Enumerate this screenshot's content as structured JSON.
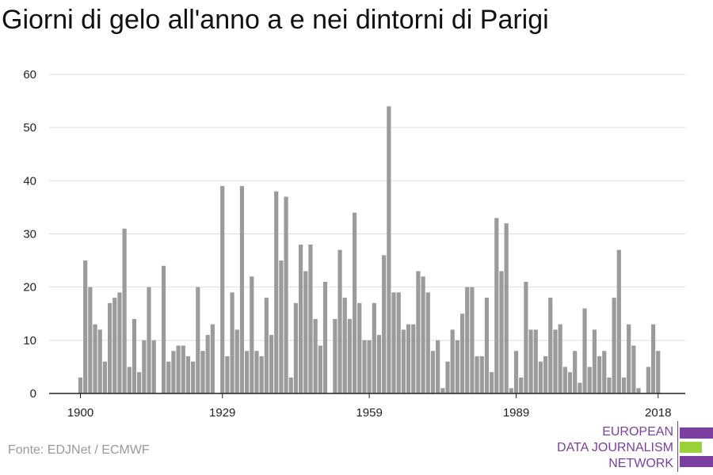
{
  "title": "Giorni di gelo all'anno a e nei dintorni di Parigi",
  "source": "Fonte: EDJNet / ECMWF",
  "logo": {
    "lines": [
      "EUROPEAN",
      "DATA JOURNALISM",
      "NETWORK"
    ],
    "colors": {
      "purple": "#7b3fa0",
      "green": "#9bd23a"
    }
  },
  "colors": {
    "bar": "#9b9b9b",
    "grid": "#dddddd",
    "axis": "#222222"
  },
  "chart_data": {
    "type": "bar",
    "title": "Giorni di gelo all'anno a e nei dintorni di Parigi",
    "xlabel": "",
    "ylabel": "",
    "ylim": [
      0,
      60
    ],
    "yticks": [
      0,
      10,
      20,
      30,
      40,
      50,
      60
    ],
    "xtick_labels": [
      "1900",
      "1929",
      "1959",
      "1989",
      "2018"
    ],
    "grid": true,
    "x": [
      1900,
      1901,
      1902,
      1903,
      1904,
      1905,
      1906,
      1907,
      1908,
      1909,
      1910,
      1911,
      1912,
      1913,
      1914,
      1915,
      1916,
      1917,
      1918,
      1919,
      1920,
      1921,
      1922,
      1923,
      1924,
      1925,
      1926,
      1927,
      1928,
      1929,
      1930,
      1931,
      1932,
      1933,
      1934,
      1935,
      1936,
      1937,
      1938,
      1939,
      1940,
      1941,
      1942,
      1943,
      1944,
      1945,
      1946,
      1947,
      1948,
      1949,
      1950,
      1951,
      1952,
      1953,
      1954,
      1955,
      1956,
      1957,
      1958,
      1959,
      1960,
      1961,
      1962,
      1963,
      1964,
      1965,
      1966,
      1967,
      1968,
      1969,
      1970,
      1971,
      1972,
      1973,
      1974,
      1975,
      1976,
      1977,
      1978,
      1979,
      1980,
      1981,
      1982,
      1983,
      1984,
      1985,
      1986,
      1987,
      1988,
      1989,
      1990,
      1991,
      1992,
      1993,
      1994,
      1995,
      1996,
      1997,
      1998,
      1999,
      2000,
      2001,
      2002,
      2003,
      2004,
      2005,
      2006,
      2007,
      2008,
      2009,
      2010,
      2011,
      2012,
      2013,
      2014,
      2015,
      2016,
      2017,
      2018
    ],
    "values": [
      3,
      25,
      20,
      13,
      12,
      6,
      17,
      18,
      19,
      31,
      5,
      14,
      4,
      10,
      20,
      10,
      0,
      24,
      6,
      8,
      9,
      9,
      7,
      6,
      20,
      8,
      11,
      13,
      0,
      39,
      7,
      19,
      12,
      39,
      8,
      22,
      8,
      7,
      18,
      11,
      38,
      25,
      37,
      3,
      17,
      28,
      23,
      28,
      14,
      9,
      21,
      0,
      14,
      27,
      18,
      14,
      34,
      17,
      10,
      10,
      17,
      11,
      26,
      54,
      19,
      19,
      12,
      13,
      13,
      23,
      22,
      19,
      8,
      10,
      1,
      6,
      12,
      10,
      15,
      20,
      20,
      7,
      7,
      18,
      4,
      33,
      23,
      32,
      1,
      8,
      3,
      21,
      12,
      12,
      6,
      7,
      18,
      12,
      13,
      5,
      4,
      8,
      2,
      16,
      5,
      12,
      7,
      8,
      3,
      18,
      27,
      3,
      13,
      9,
      1,
      0,
      5,
      13,
      8
    ]
  }
}
